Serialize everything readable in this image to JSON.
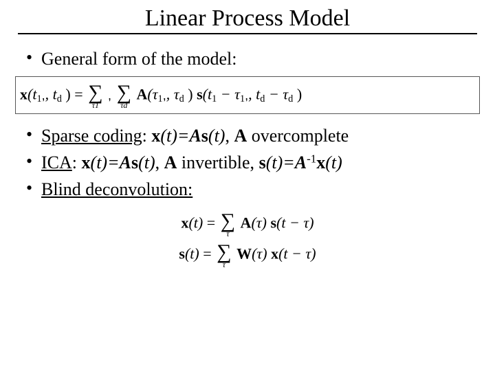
{
  "title": "Linear Process Model",
  "bullet1": "General form of the model:",
  "eq_general_lhs_x": "x",
  "eq_general_lhs_args": "(t",
  "eq_general_lhs_sub1": "1",
  "eq_general_ellips": ",  ",
  "eq_general_lhs_td": ", t",
  "eq_general_lhs_subd": "d",
  "eq_general_rparen": " )",
  "eq_equals": "  =  ",
  "eq_sum_tau1_sub": "τ1",
  "eq_sum_taud_sub": "τd",
  "eq_A": "A",
  "eq_tau_args_open": "(τ",
  "eq_sub1": "1",
  "eq_comma_ell": ",  ",
  "eq_tau_d": ", τ",
  "eq_subd": "d",
  "eq_close": " )",
  "eq_s": "s",
  "eq_s_args_open": "(t",
  "eq_minus": " − τ",
  "eq_s_mid": ",  ",
  "eq_s_td": ", t",
  "bullet2_pre": "Sparse coding",
  "bullet2_post": ": ",
  "bullet2_eq_x": "x",
  "bullet2_eq_t": "(t)=A",
  "bullet2_eq_s": "s",
  "bullet2_eq_t2": "(t)",
  "bullet2_tail": ", ",
  "bullet2_A": "A",
  "bullet2_over": " overcomplete",
  "bullet3_pre": "ICA",
  "bullet3_post": ": ",
  "bullet3_eq_x": "x",
  "bullet3_eq1": "(t)=A",
  "bullet3_eq_s": "s",
  "bullet3_eq2": "(t)",
  "bullet3_mid": ", ",
  "bullet3_A": "A",
  "bullet3_inv": " invertible, ",
  "bullet3_s": "s",
  "bullet3_eq3": "(t)=A",
  "bullet3_sup": "-1",
  "bullet3_x2": "x",
  "bullet3_eq4": "(t)",
  "bullet4": "Blind deconvolution:",
  "eq2_x": "x",
  "eq2_t": "(t)",
  "eq2_eq": "  =  ",
  "eq2_sum_sub": "τ",
  "eq2_A": "A",
  "eq2_tau": "(τ) ",
  "eq2_s": "s",
  "eq2_arg": "(t − τ)",
  "eq3_s": "s",
  "eq3_t": "(t)",
  "eq3_eq": "  =  ",
  "eq3_W": "W",
  "eq3_tau": "(τ) ",
  "eq3_x": "x",
  "eq3_arg": "(t − τ)",
  "colors": {
    "text": "#000000",
    "background": "#ffffff",
    "rule": "#000000",
    "box_border": "#555555"
  },
  "fontsizes": {
    "title": 34,
    "body": 26,
    "eq": 22
  }
}
